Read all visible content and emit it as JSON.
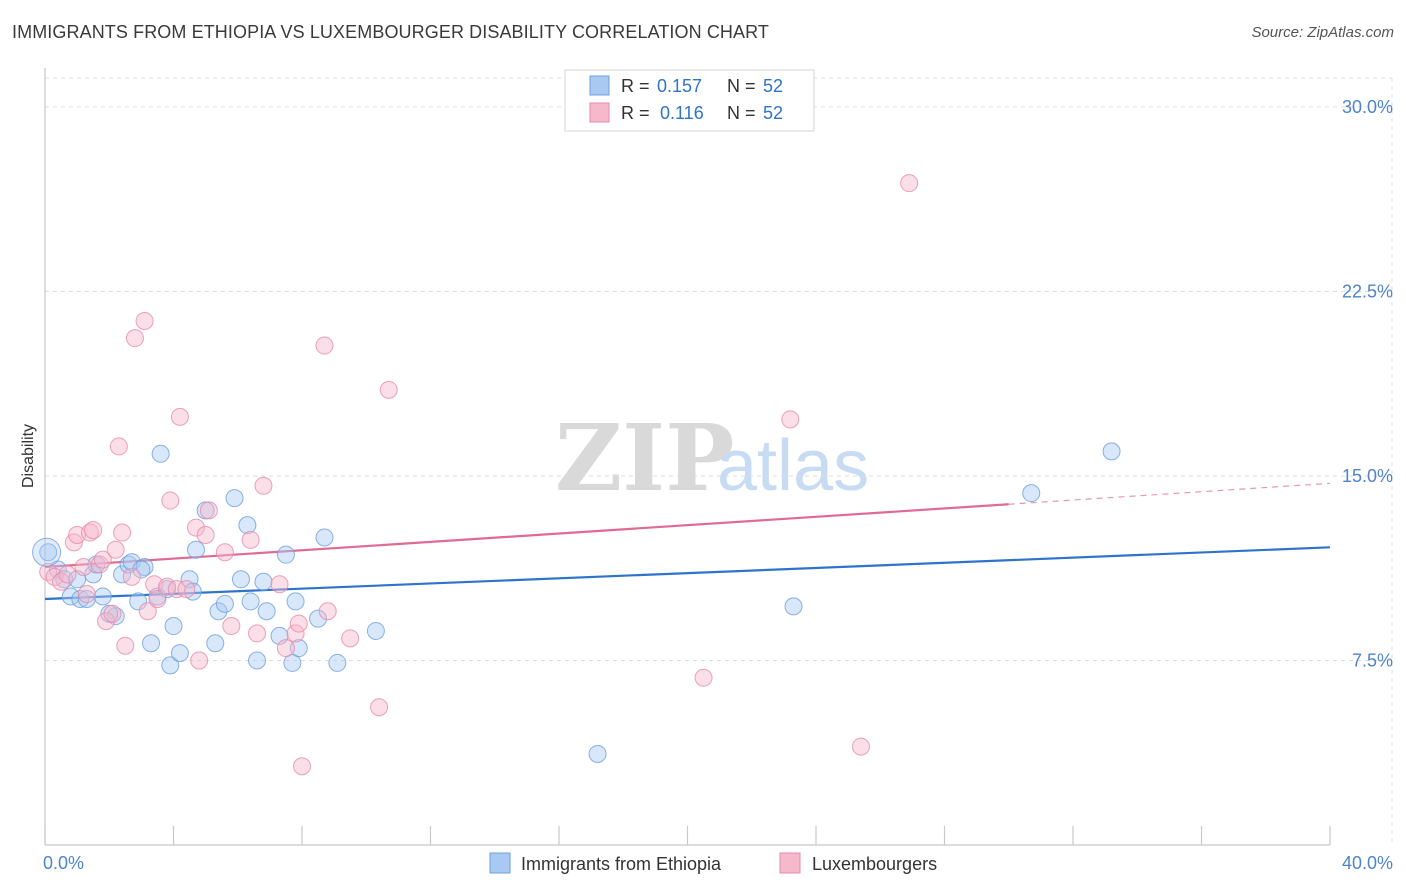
{
  "title": "IMMIGRANTS FROM ETHIOPIA VS LUXEMBOURGER DISABILITY CORRELATION CHART",
  "source": "Source: ZipAtlas.com",
  "watermark": {
    "zip": "ZIP",
    "atlas": "atlas"
  },
  "colors": {
    "blue_fill": "#a9c9f2",
    "blue_stroke": "#6d9fdc",
    "blue_line": "#2e73cc",
    "pink_fill": "#f6b8cb",
    "pink_stroke": "#e88aa8",
    "pink_line": "#e06a96",
    "axis_text": "#4f83cc",
    "grid": "#dcdcdc"
  },
  "legend": {
    "entries": [
      {
        "r_label": "R = ",
        "r_value": "0.157",
        "n_label": "N = ",
        "n_value": "52"
      },
      {
        "r_label": "R = ",
        "r_value": "0.116",
        "n_label": "N = ",
        "n_value": "52"
      }
    ]
  },
  "bottom_legend": [
    "Immigrants from Ethiopia",
    "Luxembourgers"
  ],
  "chart_data": {
    "type": "scatter",
    "xlabel": "",
    "ylabel": "Disability",
    "xlim": [
      0,
      40
    ],
    "ylim": [
      0,
      31.5
    ],
    "x_tick_labels": [
      "0.0%",
      "40.0%"
    ],
    "y_ticks": [
      7.5,
      15.0,
      22.5,
      30.0
    ],
    "y_tick_labels": [
      "7.5%",
      "15.0%",
      "22.5%",
      "30.0%"
    ],
    "series": [
      {
        "name": "Immigrants from Ethiopia",
        "color": "blue",
        "trend": {
          "x0": 0,
          "y0": 10.0,
          "x1": 40,
          "y1": 12.1,
          "solid_until": 40
        },
        "points": [
          [
            0.1,
            11.9
          ],
          [
            0.4,
            11.2
          ],
          [
            0.6,
            10.8
          ],
          [
            0.8,
            10.1
          ],
          [
            1.1,
            10.0
          ],
          [
            1.3,
            10.0
          ],
          [
            1.5,
            11.0
          ],
          [
            1.6,
            11.4
          ],
          [
            1.8,
            10.1
          ],
          [
            2.2,
            9.3
          ],
          [
            2.4,
            11.0
          ],
          [
            2.6,
            11.4
          ],
          [
            2.7,
            11.5
          ],
          [
            2.9,
            9.9
          ],
          [
            3.1,
            11.3
          ],
          [
            3.3,
            8.2
          ],
          [
            3.5,
            10.1
          ],
          [
            3.6,
            15.9
          ],
          [
            3.8,
            10.4
          ],
          [
            3.9,
            7.3
          ],
          [
            4.0,
            8.9
          ],
          [
            4.2,
            7.8
          ],
          [
            4.5,
            10.8
          ],
          [
            4.7,
            12.0
          ],
          [
            5.0,
            13.6
          ],
          [
            5.3,
            8.2
          ],
          [
            5.4,
            9.5
          ],
          [
            5.6,
            9.8
          ],
          [
            5.9,
            14.1
          ],
          [
            6.1,
            10.8
          ],
          [
            6.3,
            13.0
          ],
          [
            6.4,
            9.9
          ],
          [
            6.6,
            7.5
          ],
          [
            6.8,
            10.7
          ],
          [
            6.9,
            9.5
          ],
          [
            7.3,
            8.5
          ],
          [
            7.5,
            11.8
          ],
          [
            7.7,
            7.4
          ],
          [
            7.8,
            9.9
          ],
          [
            7.9,
            8.0
          ],
          [
            8.5,
            9.2
          ],
          [
            8.7,
            12.5
          ],
          [
            9.1,
            7.4
          ],
          [
            10.3,
            8.7
          ],
          [
            17.2,
            3.7
          ],
          [
            23.3,
            9.7
          ],
          [
            30.7,
            14.3
          ],
          [
            33.2,
            16.0
          ],
          [
            1.0,
            10.8
          ],
          [
            2.0,
            9.4
          ],
          [
            3.0,
            11.2
          ],
          [
            4.6,
            10.3
          ]
        ]
      },
      {
        "name": "Luxembourgers",
        "color": "pink",
        "trend": {
          "x0": 0,
          "y0": 11.3,
          "x1": 40,
          "y1": 14.7,
          "solid_until": 30.0
        },
        "points": [
          [
            0.1,
            11.1
          ],
          [
            0.3,
            10.9
          ],
          [
            0.5,
            10.7
          ],
          [
            0.7,
            11.0
          ],
          [
            0.9,
            12.3
          ],
          [
            1.0,
            12.6
          ],
          [
            1.2,
            11.3
          ],
          [
            1.3,
            10.2
          ],
          [
            1.4,
            12.7
          ],
          [
            1.5,
            12.8
          ],
          [
            1.7,
            11.4
          ],
          [
            1.8,
            11.6
          ],
          [
            1.9,
            9.1
          ],
          [
            2.1,
            9.4
          ],
          [
            2.2,
            12.0
          ],
          [
            2.3,
            16.2
          ],
          [
            2.4,
            12.7
          ],
          [
            2.5,
            8.1
          ],
          [
            2.7,
            10.9
          ],
          [
            2.8,
            20.6
          ],
          [
            3.1,
            21.3
          ],
          [
            3.2,
            9.5
          ],
          [
            3.4,
            10.6
          ],
          [
            3.5,
            10.0
          ],
          [
            3.8,
            10.5
          ],
          [
            3.9,
            14.0
          ],
          [
            4.1,
            10.4
          ],
          [
            4.2,
            17.4
          ],
          [
            4.4,
            10.4
          ],
          [
            4.7,
            12.9
          ],
          [
            4.8,
            7.5
          ],
          [
            5.0,
            12.6
          ],
          [
            5.1,
            13.6
          ],
          [
            5.6,
            11.9
          ],
          [
            5.8,
            8.9
          ],
          [
            6.4,
            12.4
          ],
          [
            6.6,
            8.6
          ],
          [
            6.8,
            14.6
          ],
          [
            7.3,
            10.6
          ],
          [
            7.5,
            8.0
          ],
          [
            7.8,
            8.6
          ],
          [
            7.9,
            9.0
          ],
          [
            8.0,
            3.2
          ],
          [
            8.7,
            20.3
          ],
          [
            8.8,
            9.5
          ],
          [
            9.5,
            8.4
          ],
          [
            10.4,
            5.6
          ],
          [
            10.7,
            18.5
          ],
          [
            20.5,
            6.8
          ],
          [
            23.2,
            17.3
          ],
          [
            25.4,
            4.0
          ],
          [
            26.9,
            26.9
          ]
        ]
      }
    ]
  }
}
